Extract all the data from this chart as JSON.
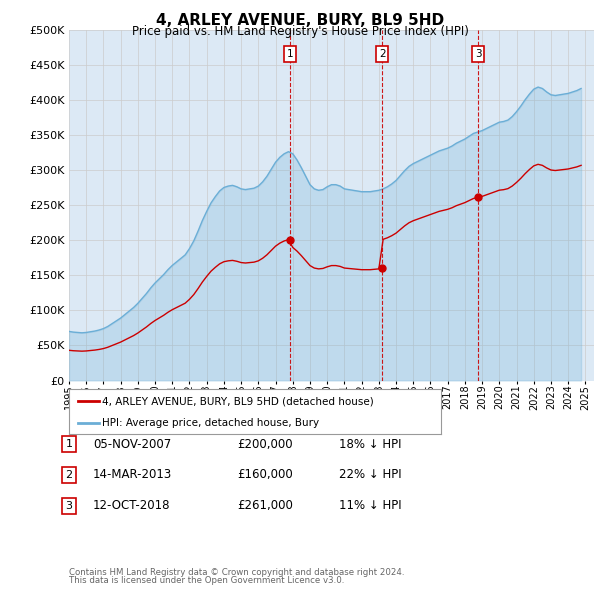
{
  "title": "4, ARLEY AVENUE, BURY, BL9 5HD",
  "subtitle": "Price paid vs. HM Land Registry's House Price Index (HPI)",
  "ylabel_ticks": [
    "£0",
    "£50K",
    "£100K",
    "£150K",
    "£200K",
    "£250K",
    "£300K",
    "£350K",
    "£400K",
    "£450K",
    "£500K"
  ],
  "ytick_values": [
    0,
    50000,
    100000,
    150000,
    200000,
    250000,
    300000,
    350000,
    400000,
    450000,
    500000
  ],
  "xmin": 1995.0,
  "xmax": 2025.5,
  "ymin": 0,
  "ymax": 500000,
  "plot_bg": "#dce9f5",
  "hpi_color": "#6baed6",
  "price_color": "#cc0000",
  "transactions": [
    {
      "num": 1,
      "x": 2007.84,
      "price": 200000
    },
    {
      "num": 2,
      "x": 2013.2,
      "price": 160000
    },
    {
      "num": 3,
      "x": 2018.78,
      "price": 261000
    }
  ],
  "legend_label_red": "4, ARLEY AVENUE, BURY, BL9 5HD (detached house)",
  "legend_label_blue": "HPI: Average price, detached house, Bury",
  "footer1": "Contains HM Land Registry data © Crown copyright and database right 2024.",
  "footer2": "This data is licensed under the Open Government Licence v3.0.",
  "table_rows": [
    {
      "num": 1,
      "date": "05-NOV-2007",
      "price": "£200,000",
      "pct": "18% ↓ HPI"
    },
    {
      "num": 2,
      "date": "14-MAR-2013",
      "price": "£160,000",
      "pct": "22% ↓ HPI"
    },
    {
      "num": 3,
      "date": "12-OCT-2018",
      "price": "£261,000",
      "pct": "11% ↓ HPI"
    }
  ],
  "hpi_x": [
    1995.0,
    1995.25,
    1995.5,
    1995.75,
    1996.0,
    1996.25,
    1996.5,
    1996.75,
    1997.0,
    1997.25,
    1997.5,
    1997.75,
    1998.0,
    1998.25,
    1998.5,
    1998.75,
    1999.0,
    1999.25,
    1999.5,
    1999.75,
    2000.0,
    2000.25,
    2000.5,
    2000.75,
    2001.0,
    2001.25,
    2001.5,
    2001.75,
    2002.0,
    2002.25,
    2002.5,
    2002.75,
    2003.0,
    2003.25,
    2003.5,
    2003.75,
    2004.0,
    2004.25,
    2004.5,
    2004.75,
    2005.0,
    2005.25,
    2005.5,
    2005.75,
    2006.0,
    2006.25,
    2006.5,
    2006.75,
    2007.0,
    2007.25,
    2007.5,
    2007.75,
    2008.0,
    2008.25,
    2008.5,
    2008.75,
    2009.0,
    2009.25,
    2009.5,
    2009.75,
    2010.0,
    2010.25,
    2010.5,
    2010.75,
    2011.0,
    2011.25,
    2011.5,
    2011.75,
    2012.0,
    2012.25,
    2012.5,
    2012.75,
    2013.0,
    2013.25,
    2013.5,
    2013.75,
    2014.0,
    2014.25,
    2014.5,
    2014.75,
    2015.0,
    2015.25,
    2015.5,
    2015.75,
    2016.0,
    2016.25,
    2016.5,
    2016.75,
    2017.0,
    2017.25,
    2017.5,
    2017.75,
    2018.0,
    2018.25,
    2018.5,
    2018.75,
    2019.0,
    2019.25,
    2019.5,
    2019.75,
    2020.0,
    2020.25,
    2020.5,
    2020.75,
    2021.0,
    2021.25,
    2021.5,
    2021.75,
    2022.0,
    2022.25,
    2022.5,
    2022.75,
    2023.0,
    2023.25,
    2023.5,
    2023.75,
    2024.0,
    2024.25,
    2024.5,
    2024.75
  ],
  "hpi_y": [
    70000,
    69000,
    68500,
    68000,
    68500,
    69500,
    70500,
    72000,
    74000,
    77000,
    81000,
    85000,
    89000,
    94000,
    99000,
    104000,
    110000,
    117000,
    124000,
    132000,
    139000,
    145000,
    151000,
    158000,
    164000,
    169000,
    174000,
    179000,
    188000,
    199000,
    213000,
    228000,
    241000,
    253000,
    262000,
    270000,
    275000,
    277000,
    278000,
    276000,
    273000,
    272000,
    273000,
    274000,
    277000,
    283000,
    291000,
    301000,
    311000,
    318000,
    323000,
    326000,
    323000,
    314000,
    303000,
    291000,
    279000,
    273000,
    271000,
    272000,
    276000,
    279000,
    279000,
    277000,
    273000,
    272000,
    271000,
    270000,
    269000,
    269000,
    269000,
    270000,
    271000,
    273000,
    276000,
    280000,
    285000,
    292000,
    299000,
    305000,
    309000,
    312000,
    315000,
    318000,
    321000,
    324000,
    327000,
    329000,
    331000,
    334000,
    338000,
    341000,
    344000,
    348000,
    352000,
    354000,
    356000,
    359000,
    362000,
    365000,
    368000,
    369000,
    371000,
    376000,
    383000,
    391000,
    400000,
    408000,
    415000,
    418000,
    416000,
    411000,
    407000,
    406000,
    407000,
    408000,
    409000,
    411000,
    413000,
    416000
  ]
}
